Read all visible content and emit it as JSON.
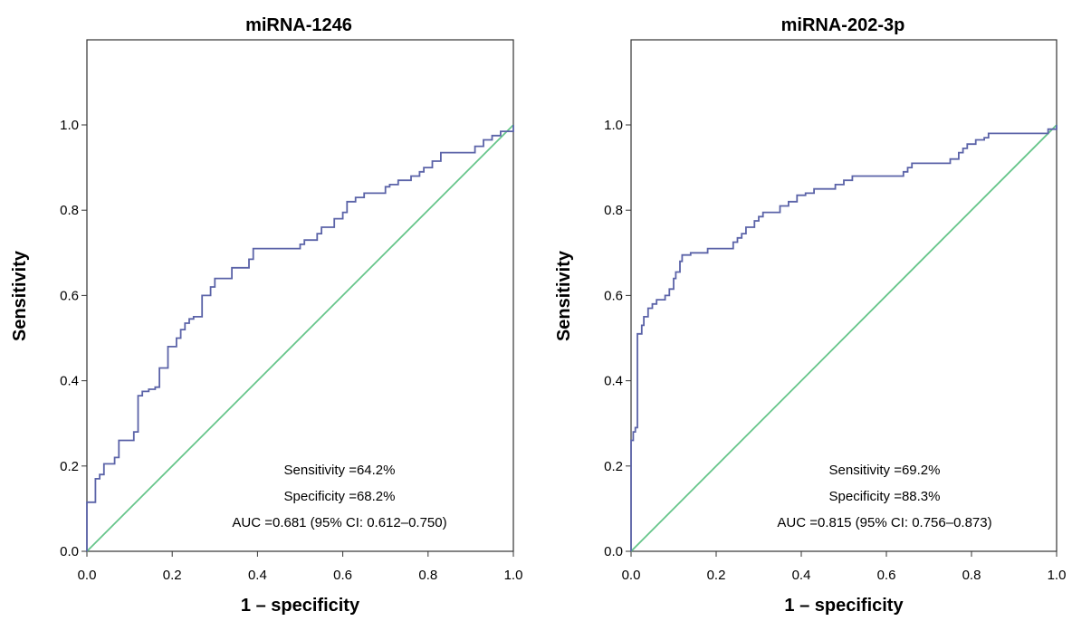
{
  "chart_data": [
    {
      "type": "line",
      "title": "miRNA-1246",
      "xlabel": "1 – specificity",
      "ylabel": "Sensitivity",
      "xlim": [
        0,
        1
      ],
      "ylim": [
        0,
        1.1
      ],
      "xticks": [
        "0.0",
        "0.2",
        "0.4",
        "0.6",
        "0.8",
        "1.0"
      ],
      "yticks": [
        "0.0",
        "0.2",
        "0.4",
        "0.6",
        "0.8",
        "1.0"
      ],
      "grid": false,
      "colors": {
        "roc": "#5b63a8",
        "reference": "#66c58a"
      },
      "series": [
        {
          "values": [
            [
              0,
              0
            ],
            [
              0,
              0.115
            ],
            [
              0.02,
              0.115
            ],
            [
              0.02,
              0.17
            ],
            [
              0.03,
              0.17
            ],
            [
              0.03,
              0.18
            ],
            [
              0.04,
              0.18
            ],
            [
              0.04,
              0.205
            ],
            [
              0.065,
              0.205
            ],
            [
              0.065,
              0.22
            ],
            [
              0.075,
              0.22
            ],
            [
              0.075,
              0.26
            ],
            [
              0.11,
              0.26
            ],
            [
              0.11,
              0.28
            ],
            [
              0.12,
              0.28
            ],
            [
              0.12,
              0.365
            ],
            [
              0.13,
              0.365
            ],
            [
              0.13,
              0.375
            ],
            [
              0.145,
              0.375
            ],
            [
              0.145,
              0.38
            ],
            [
              0.16,
              0.38
            ],
            [
              0.16,
              0.385
            ],
            [
              0.17,
              0.385
            ],
            [
              0.17,
              0.43
            ],
            [
              0.19,
              0.43
            ],
            [
              0.19,
              0.48
            ],
            [
              0.21,
              0.48
            ],
            [
              0.21,
              0.5
            ],
            [
              0.22,
              0.5
            ],
            [
              0.22,
              0.52
            ],
            [
              0.23,
              0.52
            ],
            [
              0.23,
              0.535
            ],
            [
              0.24,
              0.535
            ],
            [
              0.24,
              0.545
            ],
            [
              0.25,
              0.545
            ],
            [
              0.25,
              0.55
            ],
            [
              0.27,
              0.55
            ],
            [
              0.27,
              0.6
            ],
            [
              0.29,
              0.6
            ],
            [
              0.29,
              0.62
            ],
            [
              0.3,
              0.62
            ],
            [
              0.3,
              0.64
            ],
            [
              0.34,
              0.64
            ],
            [
              0.34,
              0.665
            ],
            [
              0.38,
              0.665
            ],
            [
              0.38,
              0.685
            ],
            [
              0.39,
              0.685
            ],
            [
              0.39,
              0.71
            ],
            [
              0.5,
              0.71
            ],
            [
              0.5,
              0.72
            ],
            [
              0.51,
              0.72
            ],
            [
              0.51,
              0.73
            ],
            [
              0.54,
              0.73
            ],
            [
              0.54,
              0.745
            ],
            [
              0.55,
              0.745
            ],
            [
              0.55,
              0.76
            ],
            [
              0.58,
              0.76
            ],
            [
              0.58,
              0.78
            ],
            [
              0.6,
              0.78
            ],
            [
              0.6,
              0.795
            ],
            [
              0.61,
              0.795
            ],
            [
              0.61,
              0.82
            ],
            [
              0.63,
              0.82
            ],
            [
              0.63,
              0.83
            ],
            [
              0.65,
              0.83
            ],
            [
              0.65,
              0.84
            ],
            [
              0.7,
              0.84
            ],
            [
              0.7,
              0.855
            ],
            [
              0.71,
              0.855
            ],
            [
              0.71,
              0.86
            ],
            [
              0.73,
              0.86
            ],
            [
              0.73,
              0.87
            ],
            [
              0.76,
              0.87
            ],
            [
              0.76,
              0.88
            ],
            [
              0.78,
              0.88
            ],
            [
              0.78,
              0.89
            ],
            [
              0.79,
              0.89
            ],
            [
              0.79,
              0.9
            ],
            [
              0.81,
              0.9
            ],
            [
              0.81,
              0.915
            ],
            [
              0.83,
              0.915
            ],
            [
              0.83,
              0.935
            ],
            [
              0.91,
              0.935
            ],
            [
              0.91,
              0.95
            ],
            [
              0.93,
              0.95
            ],
            [
              0.93,
              0.965
            ],
            [
              0.95,
              0.965
            ],
            [
              0.95,
              0.975
            ],
            [
              0.97,
              0.975
            ],
            [
              0.97,
              0.985
            ],
            [
              1,
              0.985
            ],
            [
              1,
              1
            ]
          ]
        }
      ],
      "annotations": [
        "Sensitivity =64.2%",
        "Specificity =68.2%",
        "AUC =0.681 (95% CI: 0.612–0.750)"
      ]
    },
    {
      "type": "line",
      "title": "miRNA-202-3p",
      "xlabel": "1 – specificity",
      "ylabel": "Sensitivity",
      "xlim": [
        0,
        1
      ],
      "ylim": [
        0,
        1.1
      ],
      "xticks": [
        "0.0",
        "0.2",
        "0.4",
        "0.6",
        "0.8",
        "1.0"
      ],
      "yticks": [
        "0.0",
        "0.2",
        "0.4",
        "0.6",
        "0.8",
        "1.0"
      ],
      "grid": false,
      "colors": {
        "roc": "#5b63a8",
        "reference": "#66c58a"
      },
      "series": [
        {
          "values": [
            [
              0,
              0
            ],
            [
              0,
              0.26
            ],
            [
              0.005,
              0.26
            ],
            [
              0.005,
              0.28
            ],
            [
              0.01,
              0.28
            ],
            [
              0.01,
              0.29
            ],
            [
              0.015,
              0.29
            ],
            [
              0.015,
              0.51
            ],
            [
              0.025,
              0.51
            ],
            [
              0.025,
              0.53
            ],
            [
              0.03,
              0.53
            ],
            [
              0.03,
              0.55
            ],
            [
              0.04,
              0.55
            ],
            [
              0.04,
              0.57
            ],
            [
              0.05,
              0.57
            ],
            [
              0.05,
              0.58
            ],
            [
              0.06,
              0.58
            ],
            [
              0.06,
              0.59
            ],
            [
              0.08,
              0.59
            ],
            [
              0.08,
              0.6
            ],
            [
              0.09,
              0.6
            ],
            [
              0.09,
              0.615
            ],
            [
              0.1,
              0.615
            ],
            [
              0.1,
              0.64
            ],
            [
              0.105,
              0.64
            ],
            [
              0.105,
              0.655
            ],
            [
              0.115,
              0.655
            ],
            [
              0.115,
              0.68
            ],
            [
              0.12,
              0.68
            ],
            [
              0.12,
              0.695
            ],
            [
              0.14,
              0.695
            ],
            [
              0.14,
              0.7
            ],
            [
              0.18,
              0.7
            ],
            [
              0.18,
              0.71
            ],
            [
              0.24,
              0.71
            ],
            [
              0.24,
              0.725
            ],
            [
              0.25,
              0.725
            ],
            [
              0.25,
              0.735
            ],
            [
              0.26,
              0.735
            ],
            [
              0.26,
              0.745
            ],
            [
              0.27,
              0.745
            ],
            [
              0.27,
              0.76
            ],
            [
              0.29,
              0.76
            ],
            [
              0.29,
              0.775
            ],
            [
              0.3,
              0.775
            ],
            [
              0.3,
              0.785
            ],
            [
              0.31,
              0.785
            ],
            [
              0.31,
              0.795
            ],
            [
              0.35,
              0.795
            ],
            [
              0.35,
              0.81
            ],
            [
              0.37,
              0.81
            ],
            [
              0.37,
              0.82
            ],
            [
              0.39,
              0.82
            ],
            [
              0.39,
              0.835
            ],
            [
              0.41,
              0.835
            ],
            [
              0.41,
              0.84
            ],
            [
              0.43,
              0.84
            ],
            [
              0.43,
              0.85
            ],
            [
              0.48,
              0.85
            ],
            [
              0.48,
              0.86
            ],
            [
              0.5,
              0.86
            ],
            [
              0.5,
              0.87
            ],
            [
              0.52,
              0.87
            ],
            [
              0.52,
              0.88
            ],
            [
              0.64,
              0.88
            ],
            [
              0.64,
              0.89
            ],
            [
              0.65,
              0.89
            ],
            [
              0.65,
              0.9
            ],
            [
              0.66,
              0.9
            ],
            [
              0.66,
              0.91
            ],
            [
              0.75,
              0.91
            ],
            [
              0.75,
              0.92
            ],
            [
              0.77,
              0.92
            ],
            [
              0.77,
              0.935
            ],
            [
              0.78,
              0.935
            ],
            [
              0.78,
              0.945
            ],
            [
              0.79,
              0.945
            ],
            [
              0.79,
              0.955
            ],
            [
              0.81,
              0.955
            ],
            [
              0.81,
              0.965
            ],
            [
              0.83,
              0.965
            ],
            [
              0.83,
              0.97
            ],
            [
              0.84,
              0.97
            ],
            [
              0.84,
              0.98
            ],
            [
              0.98,
              0.98
            ],
            [
              0.98,
              0.99
            ],
            [
              1,
              0.99
            ],
            [
              1,
              1
            ]
          ]
        }
      ],
      "annotations": [
        "Sensitivity =69.2%",
        "Specificity =88.3%",
        "AUC =0.815 (95% CI: 0.756–0.873)"
      ]
    }
  ]
}
